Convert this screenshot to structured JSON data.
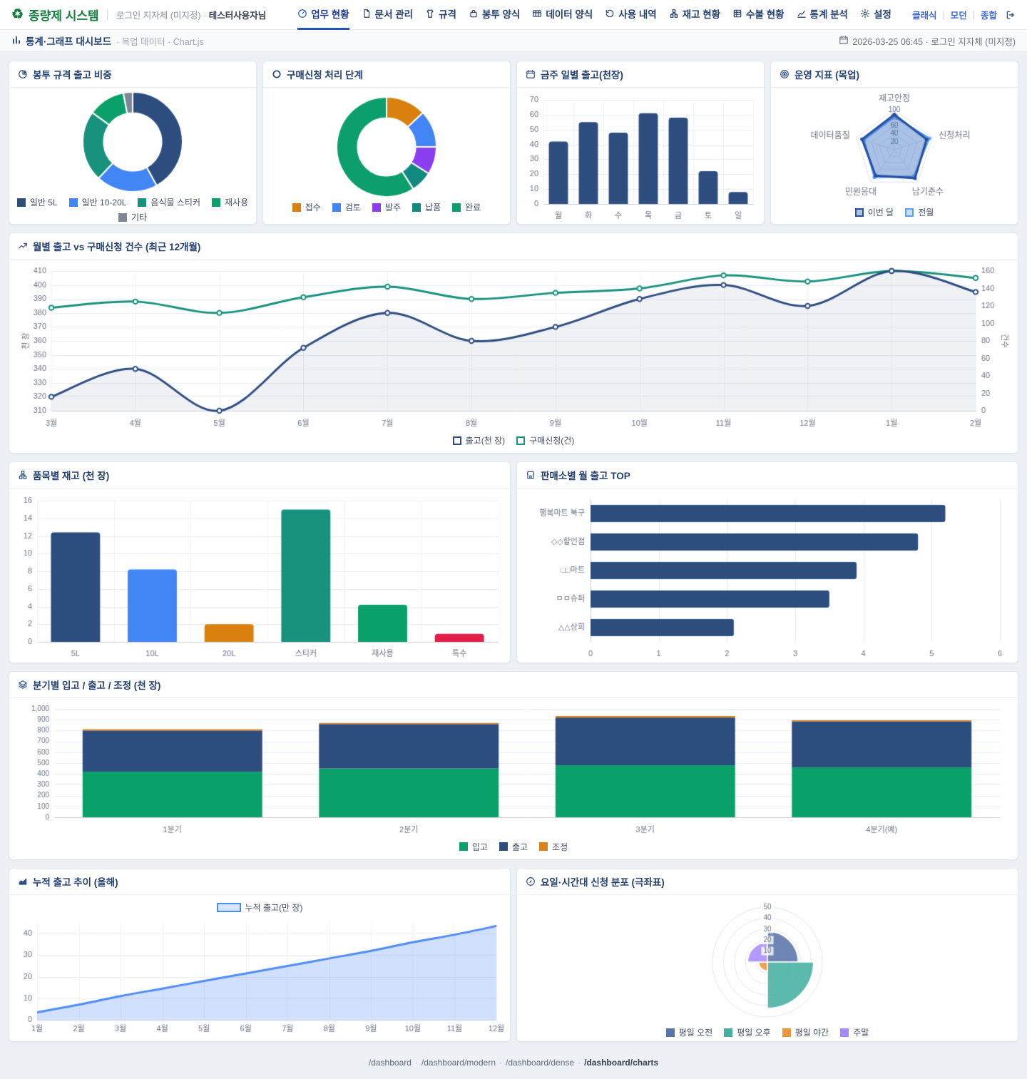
{
  "app": {
    "brand": "종량제 시스템",
    "login_context": "로그인 지자체 (미지정)",
    "user": "테스터사용자님",
    "separator": "·"
  },
  "nav": {
    "separator": "|",
    "items": [
      {
        "name": "work-status",
        "label": "업무 현황",
        "icon": "gauge-icon",
        "active": true
      },
      {
        "name": "document-management",
        "label": "문서 관리",
        "icon": "document-icon",
        "active": false
      },
      {
        "name": "specs",
        "label": "규격",
        "icon": "shirt-icon",
        "active": false
      },
      {
        "name": "envelope-forms",
        "label": "봉투 양식",
        "icon": "bag-icon",
        "active": false
      },
      {
        "name": "data-forms",
        "label": "데이터 양식",
        "icon": "table-icon",
        "active": false
      },
      {
        "name": "usage-history",
        "label": "사용 내역",
        "icon": "history-icon",
        "active": false
      },
      {
        "name": "inventory-status",
        "label": "재고 현황",
        "icon": "boxes-icon",
        "active": false
      },
      {
        "name": "ledger-status",
        "label": "수불 현황",
        "icon": "ledger-icon",
        "active": false
      },
      {
        "name": "statistics-analysis",
        "label": "통계 분석",
        "icon": "chart-line-icon",
        "active": false
      },
      {
        "name": "settings",
        "label": "설정",
        "icon": "gear-icon",
        "active": false
      }
    ],
    "mode_links": [
      {
        "name": "classic",
        "label": "클래식"
      },
      {
        "name": "modern",
        "label": "모던"
      },
      {
        "name": "combined",
        "label": "종합"
      }
    ]
  },
  "breadcrumb": {
    "title": "통계·그래프 대시보드",
    "sub": "· 목업 데이터 · Chart.js",
    "timestamp": "2026-03-25 06:45 · 로그인 지자체 (미지정)"
  },
  "footer": {
    "separator": "·",
    "links": [
      "/dashboard",
      "/dashboard/modern",
      "/dashboard/dense",
      "/dashboard/charts"
    ],
    "active": "/dashboard/charts"
  },
  "chart_data": [
    {
      "id": "envelope-share",
      "type": "doughnut",
      "title": "봉투 규격 출고 비중",
      "labels": [
        "일반 5L",
        "일반 10-20L",
        "음식물 스티커",
        "재사용",
        "기타"
      ],
      "values": [
        42,
        20,
        23,
        12,
        3
      ],
      "colors": [
        "#2d4d7e",
        "#4285f4",
        "#18917d",
        "#0aa06a",
        "#7d8795"
      ],
      "legend_style": "fill",
      "legend_position": "bottom"
    },
    {
      "id": "purchase-stages",
      "type": "doughnut",
      "title": "구매신청 처리 단계",
      "labels": [
        "접수",
        "검토",
        "발주",
        "납품",
        "완료"
      ],
      "values": [
        13,
        12,
        9,
        7,
        59
      ],
      "colors": [
        "#d9800e",
        "#4285f4",
        "#8b3ef0",
        "#12897f",
        "#0d9e6d"
      ],
      "legend_style": "fill",
      "legend_position": "bottom"
    },
    {
      "id": "weekly-shipment",
      "type": "bar",
      "title": "금주 일별 출고(천장)",
      "labels": [
        "월",
        "화",
        "수",
        "목",
        "금",
        "토",
        "일"
      ],
      "values": [
        42,
        55,
        48,
        61,
        58,
        22,
        8
      ],
      "color": "#2d4d7e",
      "ylim": [
        0,
        70
      ],
      "step": 10,
      "grid": true
    },
    {
      "id": "ops-kpi",
      "type": "radar",
      "title": "운영 지표 (목업)",
      "labels": [
        "재고안정",
        "신청처리",
        "납기준수",
        "민원응대",
        "데이터품질"
      ],
      "max": 100,
      "ticks": [
        20,
        40,
        60,
        80,
        100
      ],
      "series": [
        {
          "name": "이번 달",
          "color": "#2450a4",
          "values": [
            88,
            85,
            88,
            80,
            85
          ]
        },
        {
          "name": "전월",
          "color": "#5da0f0",
          "values": [
            83,
            92,
            83,
            85,
            80
          ]
        }
      ],
      "legend_style": "tint",
      "legend_position": "bottom"
    },
    {
      "id": "monthly-vs-requests",
      "type": "line-dual",
      "title": "월별 출고 vs 구매신청 건수 (최근 12개월)",
      "labels": [
        "3월",
        "4월",
        "5월",
        "6월",
        "7월",
        "8월",
        "9월",
        "10월",
        "11월",
        "12월",
        "1월",
        "2월"
      ],
      "left": {
        "min": 310,
        "max": 410,
        "step": 10,
        "label": "천 장"
      },
      "right": {
        "min": 0,
        "max": 160,
        "step": 20,
        "label": "건수"
      },
      "series": [
        {
          "name": "출고(천 장)",
          "axis": "left",
          "color": "#2d4d7e",
          "fill": "rgba(45,77,126,0.08)",
          "values": [
            320,
            340,
            310,
            355,
            380,
            360,
            370,
            390,
            400,
            385,
            410,
            395
          ]
        },
        {
          "name": "구매신청(건)",
          "axis": "right",
          "color": "#18917d",
          "values": [
            118,
            125,
            112,
            130,
            142,
            128,
            135,
            140,
            155,
            148,
            160,
            152
          ]
        }
      ],
      "legend_style": "outline",
      "legend_position": "bottom"
    },
    {
      "id": "stock-by-item",
      "type": "bar",
      "title": "품목별 재고 (천 장)",
      "labels": [
        "5L",
        "10L",
        "20L",
        "스티커",
        "재사용",
        "특수"
      ],
      "values": [
        12.4,
        8.2,
        2,
        15,
        4.2,
        0.9
      ],
      "colors": [
        "#2d4d7e",
        "#4285f4",
        "#d9800e",
        "#18917d",
        "#0aa06a",
        "#e11d48"
      ],
      "ylim": [
        0,
        16
      ],
      "step": 2,
      "grid": true
    },
    {
      "id": "top-sellers",
      "type": "hbar",
      "title": "판매소별 월 출고 TOP",
      "labels": [
        "행복마트 북구",
        "◇◇할인점",
        "□□마트",
        "ㅁㅁ슈퍼",
        "△△상회"
      ],
      "values": [
        5.2,
        4.8,
        3.9,
        3.5,
        2.1
      ],
      "color": "#2d4d7e",
      "xlim": [
        0,
        6
      ],
      "step": 1
    },
    {
      "id": "quarterly-io",
      "type": "stacked-bar",
      "title": "분기별 입고 / 출고 / 조정 (천 장)",
      "labels": [
        "1분기",
        "2분기",
        "3분기",
        "4분기(예)"
      ],
      "series": [
        {
          "name": "입고",
          "color": "#0aa06a",
          "values": [
            420,
            450,
            480,
            460
          ]
        },
        {
          "name": "출고",
          "color": "#2d4d7e",
          "values": [
            380,
            410,
            440,
            425
          ]
        },
        {
          "name": "조정",
          "color": "#dd8018",
          "values": [
            12,
            10,
            14,
            10
          ]
        }
      ],
      "ylim": [
        0,
        1000
      ],
      "step": 100,
      "legend_style": "fill",
      "legend_position": "bottom"
    },
    {
      "id": "cumulative-shipment",
      "type": "area",
      "title": "누적 출고 추이 (올해)",
      "labels": [
        "1월",
        "2월",
        "3월",
        "4월",
        "5월",
        "6월",
        "7월",
        "8월",
        "9월",
        "10월",
        "11월",
        "12월"
      ],
      "series": [
        {
          "name": "누적 출고(만 장)",
          "color": "#4f8cf0",
          "fill": "rgba(111,158,245,0.32)",
          "values": [
            3.5,
            7,
            11,
            14.5,
            18,
            21.5,
            25,
            28.5,
            32,
            36,
            39.5,
            43.5
          ]
        }
      ],
      "ymax": 45,
      "ticks": [
        0,
        10,
        20,
        30,
        40
      ],
      "legend_style": "band",
      "legend_position": "top"
    },
    {
      "id": "time-slot-distribution",
      "type": "polar",
      "title": "요일·시간대 신청 분포 (극좌표)",
      "labels": [
        "평일 오전",
        "평일 오후",
        "평일 야간",
        "주말"
      ],
      "values": [
        28,
        42,
        8,
        18
      ],
      "colors": [
        "#5b74a8",
        "#45b0a0",
        "#e9963e",
        "#a78bfa"
      ],
      "max": 50,
      "ticks": [
        10,
        20,
        30,
        40,
        50
      ],
      "legend_style": "fill",
      "legend_position": "bottom"
    }
  ]
}
